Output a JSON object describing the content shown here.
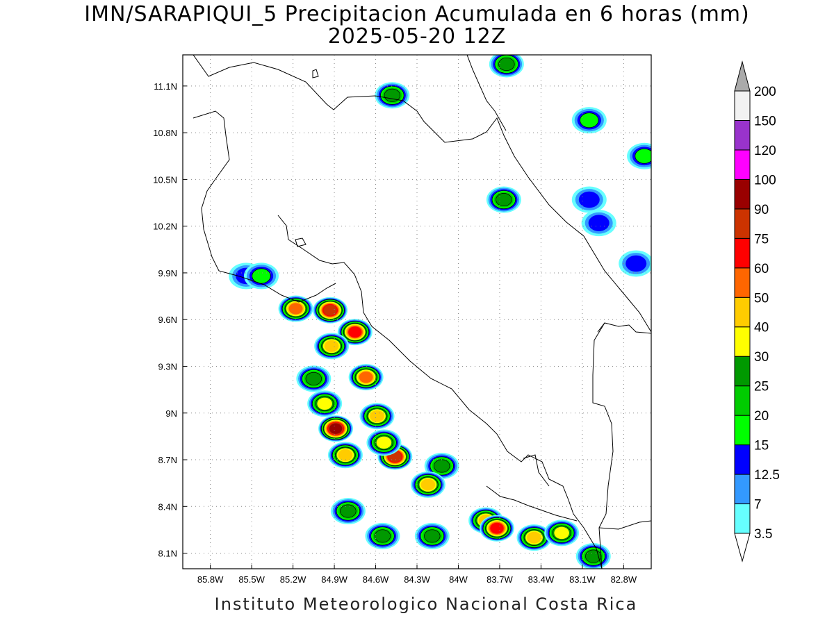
{
  "title": {
    "line1": "IMN/SARAPIQUI_5 Precipitacion Acumulada en 6 horas (mm)",
    "line2": "2025-05-20 12Z"
  },
  "footer": "Instituto Meteorologico Nacional Costa Rica",
  "map": {
    "lon_range": [
      -86.0,
      -82.6
    ],
    "lat_range": [
      8.0,
      11.3
    ],
    "grid": true,
    "lon_ticks": [
      {
        "value": -85.8,
        "label": "85.8W"
      },
      {
        "value": -85.5,
        "label": "85.5W"
      },
      {
        "value": -85.2,
        "label": "85.2W"
      },
      {
        "value": -84.9,
        "label": "84.9W"
      },
      {
        "value": -84.6,
        "label": "84.6W"
      },
      {
        "value": -84.3,
        "label": "84.3W"
      },
      {
        "value": -84.0,
        "label": "84W"
      },
      {
        "value": -83.7,
        "label": "83.7W"
      },
      {
        "value": -83.4,
        "label": "83.4W"
      },
      {
        "value": -83.1,
        "label": "83.1W"
      },
      {
        "value": -82.8,
        "label": "82.8W"
      }
    ],
    "lat_ticks": [
      {
        "value": 11.1,
        "label": "11.1N"
      },
      {
        "value": 10.8,
        "label": "10.8N"
      },
      {
        "value": 10.5,
        "label": "10.5N"
      },
      {
        "value": 10.2,
        "label": "10.2N"
      },
      {
        "value": 9.9,
        "label": "9.9N"
      },
      {
        "value": 9.6,
        "label": "9.6N"
      },
      {
        "value": 9.3,
        "label": "9.3N"
      },
      {
        "value": 9.0,
        "label": "9N"
      },
      {
        "value": 8.7,
        "label": "8.7N"
      },
      {
        "value": 8.4,
        "label": "8.4N"
      },
      {
        "value": 8.1,
        "label": "8.1N"
      }
    ]
  },
  "colorbar": {
    "levels": [
      "3.5",
      "7",
      "12.5",
      "15",
      "20",
      "25",
      "30",
      "40",
      "50",
      "60",
      "75",
      "90",
      "100",
      "120",
      "150",
      "200"
    ],
    "colors": [
      "#66ffff",
      "#3399ff",
      "#0000ff",
      "#00ff00",
      "#00cc00",
      "#009900",
      "#ffff00",
      "#ffcc00",
      "#ff6600",
      "#ff0000",
      "#cc3300",
      "#990000",
      "#ff00ff",
      "#9933cc",
      "#f2f2f2",
      "#aaaaaa"
    ]
  },
  "precip_cells": [
    {
      "lon": -84.48,
      "lat": 11.04,
      "value": 25
    },
    {
      "lon": -83.65,
      "lat": 11.24,
      "value": 25
    },
    {
      "lon": -83.05,
      "lat": 10.88,
      "value": 15
    },
    {
      "lon": -82.65,
      "lat": 10.65,
      "value": 15
    },
    {
      "lon": -83.67,
      "lat": 10.37,
      "value": 25
    },
    {
      "lon": -83.05,
      "lat": 10.37,
      "value": 12.5
    },
    {
      "lon": -82.98,
      "lat": 10.22,
      "value": 12.5
    },
    {
      "lon": -82.71,
      "lat": 9.96,
      "value": 12.5
    },
    {
      "lon": -85.54,
      "lat": 9.88,
      "value": 12.5
    },
    {
      "lon": -85.43,
      "lat": 9.88,
      "value": 15
    },
    {
      "lon": -85.18,
      "lat": 9.67,
      "value": 50
    },
    {
      "lon": -84.93,
      "lat": 9.66,
      "value": 75
    },
    {
      "lon": -84.75,
      "lat": 9.52,
      "value": 60
    },
    {
      "lon": -84.92,
      "lat": 9.43,
      "value": 40
    },
    {
      "lon": -84.67,
      "lat": 9.23,
      "value": 50
    },
    {
      "lon": -85.05,
      "lat": 9.22,
      "value": 25
    },
    {
      "lon": -84.97,
      "lat": 9.06,
      "value": 30
    },
    {
      "lon": -84.89,
      "lat": 8.9,
      "value": 90
    },
    {
      "lon": -84.82,
      "lat": 8.73,
      "value": 40
    },
    {
      "lon": -84.59,
      "lat": 8.98,
      "value": 40
    },
    {
      "lon": -84.46,
      "lat": 8.72,
      "value": 75
    },
    {
      "lon": -84.54,
      "lat": 8.81,
      "value": 30
    },
    {
      "lon": -84.12,
      "lat": 8.66,
      "value": 25
    },
    {
      "lon": -84.22,
      "lat": 8.54,
      "value": 40
    },
    {
      "lon": -83.8,
      "lat": 8.31,
      "value": 40
    },
    {
      "lon": -83.72,
      "lat": 8.26,
      "value": 60
    },
    {
      "lon": -83.45,
      "lat": 8.2,
      "value": 40
    },
    {
      "lon": -83.25,
      "lat": 8.23,
      "value": 30
    },
    {
      "lon": -83.02,
      "lat": 8.08,
      "value": 25
    },
    {
      "lon": -84.8,
      "lat": 8.37,
      "value": 25
    },
    {
      "lon": -84.55,
      "lat": 8.21,
      "value": 25
    },
    {
      "lon": -84.19,
      "lat": 8.21,
      "value": 25
    }
  ]
}
